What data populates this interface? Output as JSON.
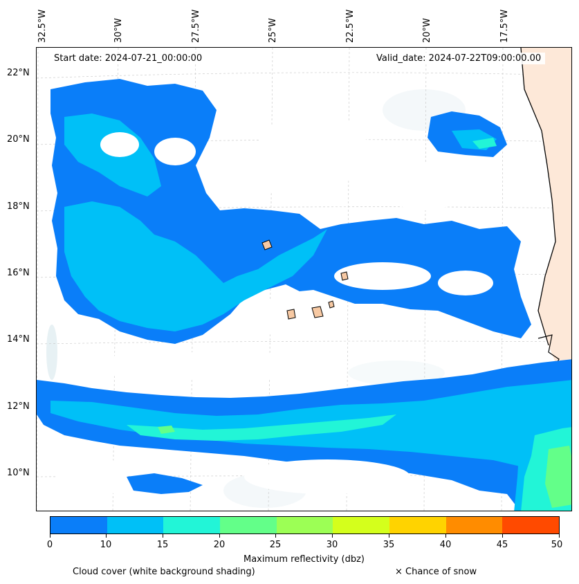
{
  "header": {
    "start_date": "Start date: 2024-07-21_00:00:00",
    "valid_date": "Valid_date: 2024-07-22T09:00:00.00"
  },
  "axes": {
    "lon_labels": [
      "32.5°W",
      "30°W",
      "27.5°W",
      "25°W",
      "22.5°W",
      "20°W",
      "17.5°W"
    ],
    "lat_labels": [
      "22°N",
      "20°N",
      "18°N",
      "16°N",
      "14°N",
      "12°N",
      "10°N"
    ]
  },
  "colorbar": {
    "title": "Maximum reflectivity (dbz)",
    "ticks": [
      "0",
      "5",
      "10",
      "15",
      "20",
      "25",
      "30",
      "35",
      "40",
      "45",
      "50"
    ],
    "colors": [
      "#0a7ef9",
      "#00c0f7",
      "#22f5d7",
      "#63ff89",
      "#9cff55",
      "#d4ff1c",
      "#ffd300",
      "#ff8c00",
      "#ff4a00"
    ]
  },
  "footer": {
    "cloud_cover": "Cloud cover (white background shading)",
    "snow": "× Chance of snow"
  },
  "colors": {
    "reflectivity_low": "#0a7ef9",
    "reflectivity_mid": "#00c0f7",
    "reflectivity_high": "#22f5d7",
    "reflectivity_peak": "#63ff89",
    "land_highlight": "#f7c9a3",
    "cloud_shading": "#e6f0f4"
  }
}
